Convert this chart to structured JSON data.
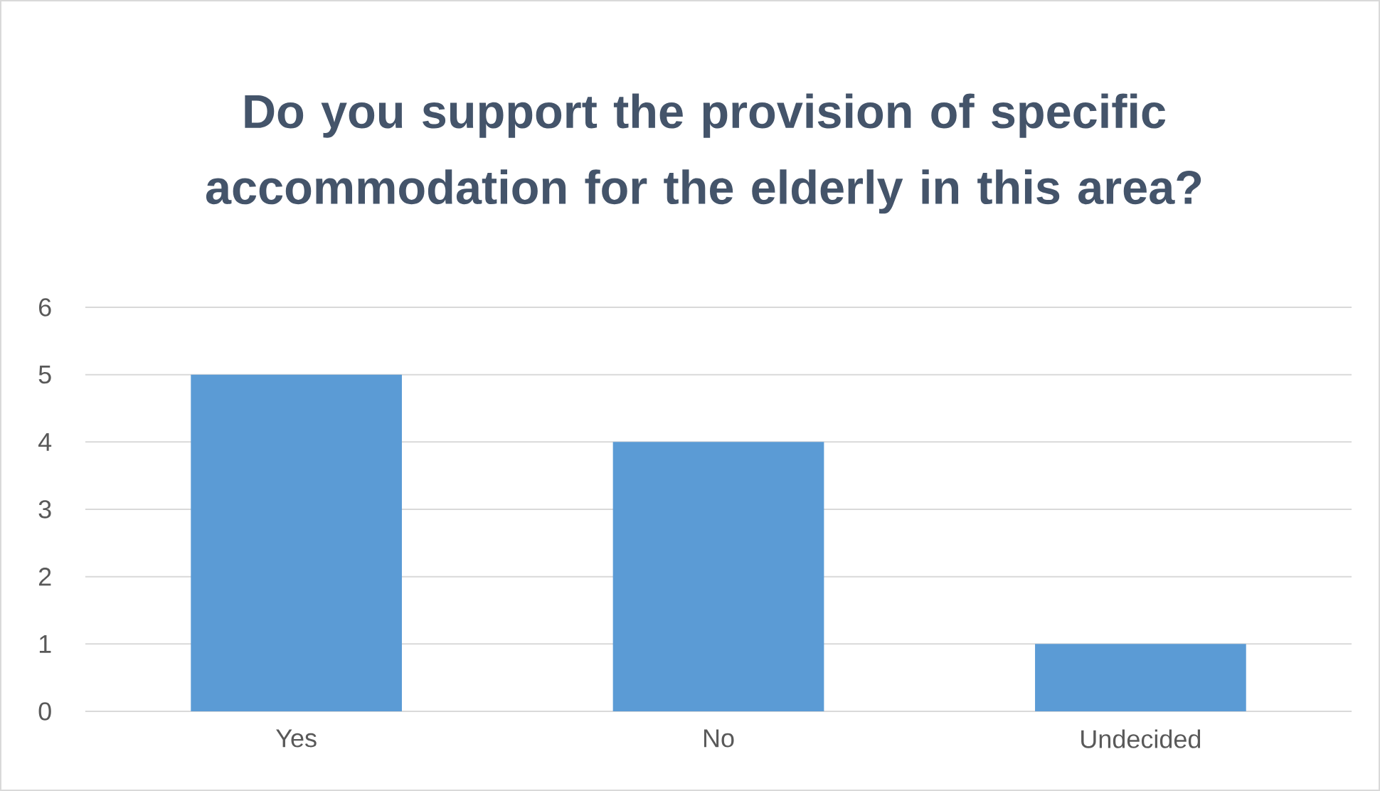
{
  "chart_data": {
    "type": "bar",
    "title": "Do you support the provision of specific accommodation for the elderly in this area?",
    "categories": [
      "Yes",
      "No",
      "Undecided"
    ],
    "values": [
      5,
      4,
      1
    ],
    "color": "#5b9bd5",
    "ylim": [
      0,
      6
    ],
    "yticks": [
      0,
      1,
      2,
      3,
      4,
      5,
      6
    ],
    "grid": "y"
  }
}
